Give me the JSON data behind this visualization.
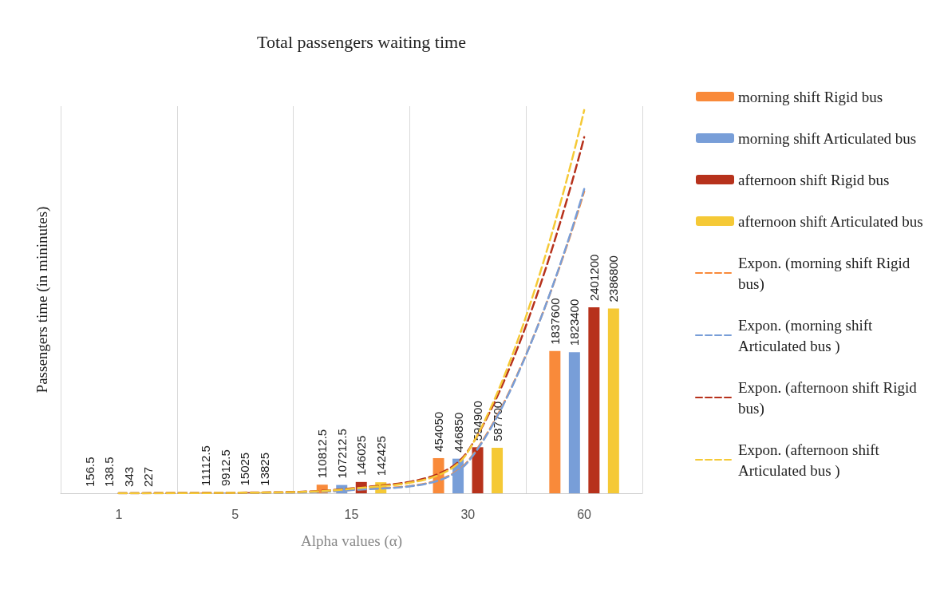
{
  "chart_data": {
    "type": "bar",
    "title": "Total passengers waiting time",
    "xlabel": "Alpha values (α)",
    "ylabel": "Passengers time (in mininutes)",
    "categories": [
      "1",
      "5",
      "15",
      "30",
      "60"
    ],
    "series": [
      {
        "name": "morning shift Rigid bus",
        "color": "#f98a3a",
        "values": [
          156.5,
          11112.5,
          110812.5,
          454050,
          1837600
        ],
        "value_labels": [
          "156.5",
          "11112.5",
          "110812.5",
          "454050",
          "1837600"
        ]
      },
      {
        "name": "morning shift Articulated bus",
        "color": "#789ed8",
        "values": [
          138.5,
          9912.5,
          107212.5,
          446850,
          1823400
        ],
        "value_labels": [
          "138.5",
          "9912.5",
          "107212.5",
          "446850",
          "1823400"
        ]
      },
      {
        "name": "afternoon shift Rigid bus",
        "color": "#b7321c",
        "values": [
          343,
          15025,
          146025,
          594900,
          2401200
        ],
        "value_labels": [
          "343",
          "15025",
          "146025",
          "594900",
          "2401200"
        ]
      },
      {
        "name": "afternoon shift Articulated bus",
        "color": "#f5c936",
        "values": [
          227,
          13825,
          142425,
          587700,
          2386800
        ],
        "value_labels": [
          "227",
          "13825",
          "142425",
          "587700",
          "2386800"
        ]
      },
      {
        "name": "Expon. (morning shift Rigid bus)",
        "type": "line",
        "line_style": "dashed",
        "color": "#f98a3a",
        "values": [
          460,
          4600,
          44000,
          414000,
          3900000
        ]
      },
      {
        "name": "Expon. (morning shift Articulated bus )",
        "type": "line",
        "line_style": "dashed",
        "color": "#789ed8",
        "values": [
          440,
          4200,
          41000,
          403000,
          3930000
        ]
      },
      {
        "name": "Expon. (afternoon shift Rigid bus)",
        "type": "line",
        "line_style": "dashed",
        "color": "#b7321c",
        "values": [
          890,
          7500,
          64000,
          545000,
          4600000
        ]
      },
      {
        "name": "Expon. (afternoon shift Articulated bus )",
        "type": "line",
        "line_style": "dashed",
        "color": "#f5c936",
        "values": [
          670,
          6200,
          58000,
          534000,
          4950000
        ]
      }
    ],
    "grid": "x",
    "legend": "right",
    "tick_labels": "x"
  }
}
